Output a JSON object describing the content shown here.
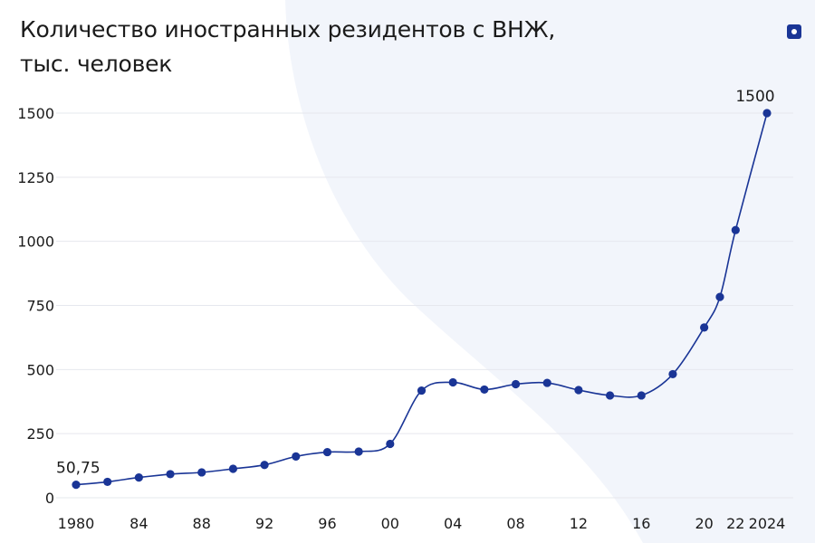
{
  "header": {
    "title_line1": "Количество иностранных резидентов с ВНЖ,",
    "title_line2": "тыс. человек",
    "logo": "square-dot-logo"
  },
  "colors": {
    "line": "#1a3596",
    "point": "#1a3596",
    "grid": "#e6e8ee",
    "text": "#1b1b1b",
    "background_shape": "#eef2f9"
  },
  "chart_data": {
    "type": "line",
    "title": "Количество иностранных резидентов с ВНЖ, тыс. человек",
    "xlabel": "",
    "ylabel": "",
    "x": [
      1980,
      1982,
      1984,
      1986,
      1988,
      1990,
      1992,
      1994,
      1996,
      1998,
      2000,
      2002,
      2004,
      2006,
      2008,
      2010,
      2012,
      2014,
      2016,
      2018,
      2020,
      2021,
      2022,
      2024
    ],
    "values": [
      50.75,
      62,
      79,
      92,
      99,
      113,
      128,
      161,
      178,
      180,
      210,
      418,
      450,
      422,
      443,
      448,
      420,
      399,
      399,
      482,
      664,
      783,
      1044,
      1500
    ],
    "x_tick_values": [
      1980,
      1984,
      1988,
      1992,
      1996,
      2000,
      2004,
      2008,
      2012,
      2016,
      2020,
      2022,
      2024
    ],
    "x_tick_labels": [
      "1980",
      "84",
      "88",
      "92",
      "96",
      "00",
      "04",
      "08",
      "12",
      "16",
      "20",
      "22",
      "2024"
    ],
    "y_ticks": [
      0,
      250,
      500,
      750,
      1000,
      1250,
      1500
    ],
    "y_tick_labels": [
      "0",
      "250",
      "500",
      "750",
      "1000",
      "1250",
      "1500"
    ],
    "xlim": [
      1980,
      2024
    ],
    "ylim": [
      0,
      1500
    ],
    "grid": "horizontal",
    "legend": "none",
    "annotations": [
      {
        "x": 1980,
        "y": 50.75,
        "text": "50,75"
      },
      {
        "x": 2024,
        "y": 1500,
        "text": "1500"
      }
    ]
  }
}
